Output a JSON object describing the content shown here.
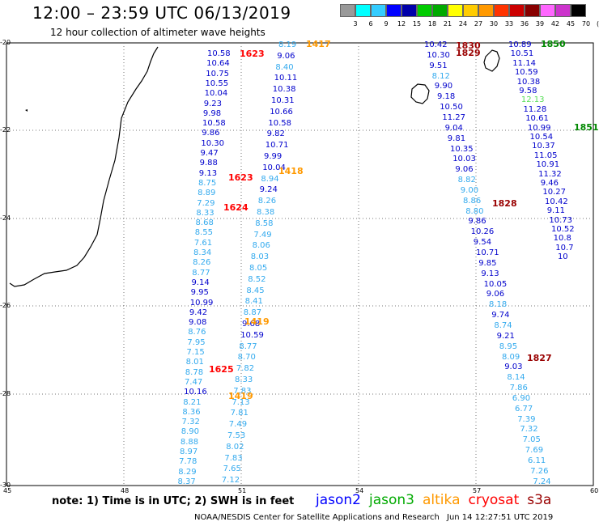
{
  "header": {
    "title": "12:00 – 23:59 UTC 06/13/2019",
    "subtitle": "12 hour collection of altimeter wave heights"
  },
  "color_scale": {
    "labels": [
      "3",
      "6",
      "9",
      "12",
      "15",
      "18",
      "21",
      "24",
      "27",
      "30",
      "33",
      "36",
      "39",
      "42",
      "45",
      "70",
      "(ft)"
    ],
    "colors": [
      "#999999",
      "#00ffff",
      "#33ccff",
      "#0000ff",
      "#0000aa",
      "#00cc00",
      "#00aa00",
      "#ffff00",
      "#ffcc00",
      "#ff9900",
      "#ff3300",
      "#cc0000",
      "#880000",
      "#ff66ff",
      "#cc33cc",
      "#000000"
    ]
  },
  "map": {
    "lat_labels": [
      "-20",
      "-22",
      "-24",
      "-26",
      "-28",
      "-30"
    ],
    "lon_labels": [
      "45",
      "48",
      "51",
      "54",
      "57",
      "60"
    ],
    "coastline_color": "#000000",
    "grid_color": "#888888"
  },
  "track_a": {
    "values": [
      "10.58",
      "10.64",
      "10.75",
      "10.55",
      "10.04",
      "9.23",
      "9.98",
      "10.58",
      "9.86",
      "10.30",
      "9.47",
      "9.88",
      "9.13",
      "8.75",
      "8.89",
      "7.29",
      "8.33",
      "8.68",
      "8.55",
      "7.61",
      "8.34",
      "8.26",
      "8.77",
      "9.14",
      "9.95",
      "10.99",
      "9.42",
      "9.08",
      "8.76",
      "7.95",
      "7.15",
      "8.01",
      "8.78",
      "7.47",
      "10.16",
      "8.21",
      "8.36",
      "7.32",
      "8.90",
      "8.88",
      "8.97",
      "7.78",
      "8.29",
      "8.37"
    ],
    "colors": [
      "#0000cc",
      "#0000cc",
      "#0000cc",
      "#0000cc",
      "#0000cc",
      "#0000cc",
      "#0000cc",
      "#0000cc",
      "#0000cc",
      "#0000cc",
      "#0000cc",
      "#0000cc",
      "#0000cc",
      "#33aaee",
      "#33aaee",
      "#33aaee",
      "#33aaee",
      "#33aaee",
      "#33aaee",
      "#33aaee",
      "#33aaee",
      "#33aaee",
      "#33aaee",
      "#0000cc",
      "#0000cc",
      "#0000cc",
      "#0000cc",
      "#0000cc",
      "#33aaee",
      "#33aaee",
      "#33aaee",
      "#33aaee",
      "#33aaee",
      "#33aaee",
      "#0000cc",
      "#33aaee",
      "#33aaee",
      "#33aaee",
      "#33aaee",
      "#33aaee",
      "#33aaee",
      "#33aaee",
      "#33aaee",
      "#33aaee"
    ]
  },
  "track_b": {
    "values": [
      "8.19",
      "9.06",
      "8.40",
      "10.11",
      "10.38",
      "10.31",
      "10.66",
      "10.58",
      "9.82",
      "10.71",
      "9.99",
      "10.04",
      "8.94",
      "9.24",
      "8.26",
      "8.38",
      "8.58",
      "7.49",
      "8.06",
      "8.03",
      "8.05",
      "8.52",
      "8.45",
      "8.41",
      "8.87",
      "9.68",
      "10.59",
      "8.77",
      "8.70",
      "7.82",
      "8.33",
      "7.83",
      "7.13",
      "7.81",
      "7.49",
      "7.53",
      "8.02",
      "7.83",
      "7.65",
      "7.12"
    ],
    "colors": [
      "#33aaee",
      "#0000cc",
      "#33aaee",
      "#0000cc",
      "#0000cc",
      "#0000cc",
      "#0000cc",
      "#0000cc",
      "#0000cc",
      "#0000cc",
      "#0000cc",
      "#0000cc",
      "#33aaee",
      "#0000cc",
      "#33aaee",
      "#33aaee",
      "#33aaee",
      "#33aaee",
      "#33aaee",
      "#33aaee",
      "#33aaee",
      "#33aaee",
      "#33aaee",
      "#33aaee",
      "#33aaee",
      "#0000cc",
      "#0000cc",
      "#33aaee",
      "#33aaee",
      "#33aaee",
      "#33aaee",
      "#33aaee",
      "#33aaee",
      "#33aaee",
      "#33aaee",
      "#33aaee",
      "#33aaee",
      "#33aaee",
      "#33aaee",
      "#33aaee"
    ]
  },
  "track_c": {
    "values": [
      "10.42",
      "10.30",
      "9.51",
      "8.12",
      "9.90",
      "9.18",
      "10.50",
      "11.27",
      "9.04",
      "9.81",
      "10.35",
      "10.03",
      "9.06",
      "8.82",
      "9.00",
      "8.86",
      "8.80",
      "9.86",
      "10.26",
      "9.54",
      "10.71",
      "9.85",
      "9.13",
      "10.05",
      "9.06",
      "8.18",
      "9.74",
      "8.74",
      "9.21",
      "8.95",
      "8.09",
      "9.03",
      "8.14",
      "7.86",
      "6.90",
      "6.77",
      "7.39",
      "7.32",
      "7.05",
      "7.69",
      "6.11",
      "7.26",
      "7.24"
    ],
    "colors": [
      "#0000cc",
      "#0000cc",
      "#0000cc",
      "#33aaee",
      "#0000cc",
      "#0000cc",
      "#0000cc",
      "#0000cc",
      "#0000cc",
      "#0000cc",
      "#0000cc",
      "#0000cc",
      "#0000cc",
      "#33aaee",
      "#33aaee",
      "#33aaee",
      "#33aaee",
      "#0000cc",
      "#0000cc",
      "#0000cc",
      "#0000cc",
      "#0000cc",
      "#0000cc",
      "#0000cc",
      "#0000cc",
      "#33aaee",
      "#0000cc",
      "#33aaee",
      "#0000cc",
      "#33aaee",
      "#33aaee",
      "#0000cc",
      "#33aaee",
      "#33aaee",
      "#33aaee",
      "#33aaee",
      "#33aaee",
      "#33aaee",
      "#33aaee",
      "#33aaee",
      "#33aaee",
      "#33aaee",
      "#33aaee"
    ]
  },
  "track_d": {
    "values": [
      "10.89",
      "10.51",
      "11.14",
      "10.59",
      "10.38",
      "9.58",
      "12.13",
      "11.28",
      "10.61",
      "10.99",
      "10.54",
      "10.37",
      "11.05",
      "10.91",
      "11.32",
      "9.46",
      "10.27",
      "10.42",
      "9.11",
      "10.73",
      "10.52",
      "10.8",
      "10.7",
      "10"
    ],
    "colors": [
      "#0000cc",
      "#0000cc",
      "#0000cc",
      "#0000cc",
      "#0000cc",
      "#0000cc",
      "#55dd55",
      "#0000cc",
      "#0000cc",
      "#0000cc",
      "#0000cc",
      "#0000cc",
      "#0000cc",
      "#0000cc",
      "#0000cc",
      "#0000cc",
      "#0000cc",
      "#0000cc",
      "#0000cc",
      "#0000cc",
      "#0000cc",
      "#0000cc",
      "#0000cc",
      "#0000cc"
    ]
  },
  "time_labels": [
    {
      "text": "1417",
      "color": "#ff9900"
    },
    {
      "text": "1623",
      "color": "#ff0000"
    },
    {
      "text": "1418",
      "color": "#ff9900"
    },
    {
      "text": "1623",
      "color": "#ff0000"
    },
    {
      "text": "1624",
      "color": "#ff0000"
    },
    {
      "text": "1419",
      "color": "#ff9900"
    },
    {
      "text": "1625",
      "color": "#ff0000"
    },
    {
      "text": "1419",
      "color": "#ff9900"
    },
    {
      "text": "1830",
      "color": "#990000"
    },
    {
      "text": "1829",
      "color": "#990000"
    },
    {
      "text": "1850",
      "color": "#008800"
    },
    {
      "text": "1851",
      "color": "#008800"
    },
    {
      "text": "1828",
      "color": "#990000"
    },
    {
      "text": "1827",
      "color": "#990000"
    }
  ],
  "footer": {
    "note": "note:  1) Time is in UTC;  2) SWH is in feet",
    "legend": [
      {
        "label": "jason2",
        "color": "#0000ff"
      },
      {
        "label": "jason3",
        "color": "#00aa00"
      },
      {
        "label": "altika",
        "color": "#ff9900"
      },
      {
        "label": "cryosat",
        "color": "#ff0000"
      },
      {
        "label": "s3a",
        "color": "#990000"
      }
    ],
    "credit": "NOAA/NESDIS Center for Satellite Applications and Research",
    "stamp": "Jun 14 12:27:51 UTC 2019"
  }
}
